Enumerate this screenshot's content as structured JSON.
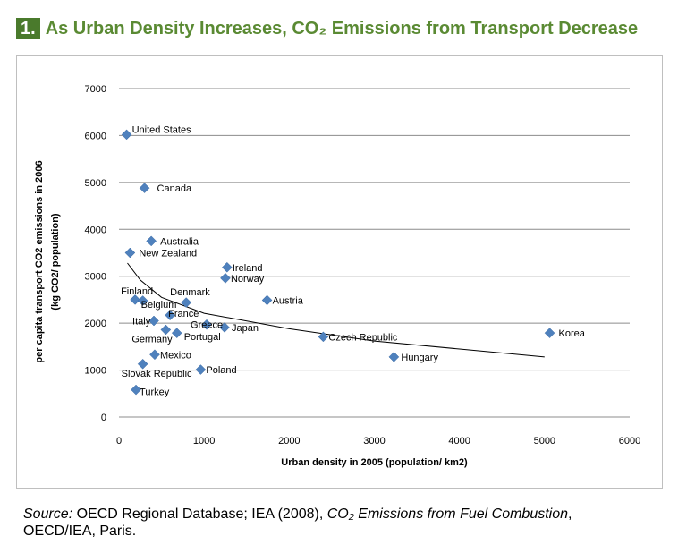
{
  "title": {
    "number": "1.",
    "text": "As Urban Density Increases, CO₂ Emissions from Transport Decrease"
  },
  "source": {
    "label": "Source:",
    "text1": " OECD Regional Database; IEA (2008), ",
    "italic": "CO₂ Emissions from Fuel Combustion",
    "text2": ",",
    "line2": "OECD/IEA, Paris."
  },
  "chart_data": {
    "type": "scatter",
    "xlabel": "Urban density in 2005 (population/ km2)",
    "ylabel_line1": "per capita transport CO2 emissions in 2006",
    "ylabel_line2": "(kg CO2/ population)",
    "xlim": [
      0,
      6000
    ],
    "ylim": [
      0,
      7000
    ],
    "xticks": [
      0,
      1000,
      2000,
      3000,
      4000,
      5000,
      6000
    ],
    "yticks": [
      0,
      1000,
      2000,
      3000,
      4000,
      5000,
      6000,
      7000
    ],
    "grid": "horizontal",
    "marker_color": "#4f81bd",
    "points": [
      {
        "label": "United States",
        "x": 90,
        "y": 6020
      },
      {
        "label": "Canada",
        "x": 300,
        "y": 4880
      },
      {
        "label": "Australia",
        "x": 380,
        "y": 3750
      },
      {
        "label": "New Zealand",
        "x": 130,
        "y": 3500
      },
      {
        "label": "Ireland",
        "x": 1270,
        "y": 3190
      },
      {
        "label": "Norway",
        "x": 1250,
        "y": 2960
      },
      {
        "label": "Austria",
        "x": 1740,
        "y": 2490
      },
      {
        "label": "Finland",
        "x": 190,
        "y": 2500
      },
      {
        "label": "Belgium",
        "x": 280,
        "y": 2480
      },
      {
        "label": "Denmark",
        "x": 790,
        "y": 2440
      },
      {
        "label": "France",
        "x": 600,
        "y": 2170
      },
      {
        "label": "Italy",
        "x": 410,
        "y": 2050
      },
      {
        "label": "Greece",
        "x": 1030,
        "y": 1970
      },
      {
        "label": "Japan",
        "x": 1240,
        "y": 1910
      },
      {
        "label": "Germany",
        "x": 550,
        "y": 1860
      },
      {
        "label": "Portugal",
        "x": 680,
        "y": 1790
      },
      {
        "label": "Czech Republic",
        "x": 2400,
        "y": 1710
      },
      {
        "label": "Korea",
        "x": 5060,
        "y": 1790
      },
      {
        "label": "Hungary",
        "x": 3230,
        "y": 1280
      },
      {
        "label": "Mexico",
        "x": 420,
        "y": 1330
      },
      {
        "label": "Slovak Republic",
        "x": 280,
        "y": 1130
      },
      {
        "label": "Poland",
        "x": 960,
        "y": 1010
      },
      {
        "label": "Turkey",
        "x": 200,
        "y": 580
      }
    ],
    "trendline": {
      "type": "power",
      "x": [
        100,
        250,
        500,
        1000,
        2000,
        3000,
        4000,
        5000
      ],
      "y": [
        3280,
        2920,
        2550,
        2210,
        1880,
        1620,
        1450,
        1280
      ]
    }
  }
}
